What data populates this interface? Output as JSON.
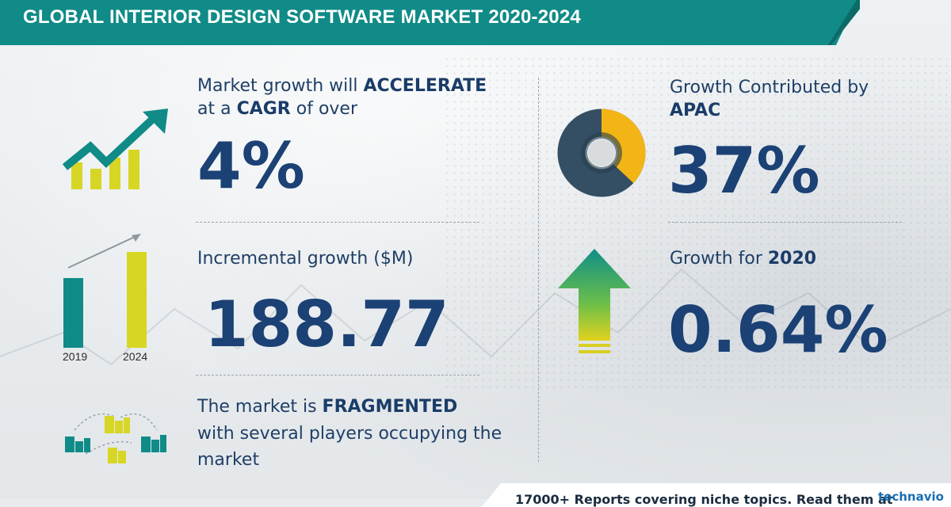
{
  "header": {
    "title": "GLOBAL INTERIOR DESIGN SOFTWARE MARKET 2020-2024"
  },
  "stats": {
    "cagr": {
      "line1_prefix": "Market growth will ",
      "line1_bold": "ACCELERATE",
      "line2_prefix": "at a ",
      "line2_bold": "CAGR",
      "line2_suffix": " of over",
      "value": "4%"
    },
    "incremental": {
      "label": "Incremental growth ($M)",
      "value": "188.77",
      "year_start": "2019",
      "year_end": "2024"
    },
    "fragmented": {
      "line1_prefix": "The market is ",
      "line1_bold": "FRAGMENTED",
      "line2": "with several players occupying the",
      "line3": "market"
    },
    "apac": {
      "line1": "Growth Contributed by",
      "line2_bold": "APAC",
      "value": "37%",
      "share": 0.37
    },
    "growth2020": {
      "label_prefix": "Growth for ",
      "label_bold": "2020",
      "value": "0.64%"
    }
  },
  "footer": {
    "text": "17000+ Reports covering niche topics. Read them at",
    "brand": "technavio"
  },
  "colors": {
    "teal": "#108b87",
    "yellow": "#d7d624",
    "navy": "#1b4175",
    "donut_dark": "#344f63",
    "donut_yellow": "#f3b515"
  }
}
